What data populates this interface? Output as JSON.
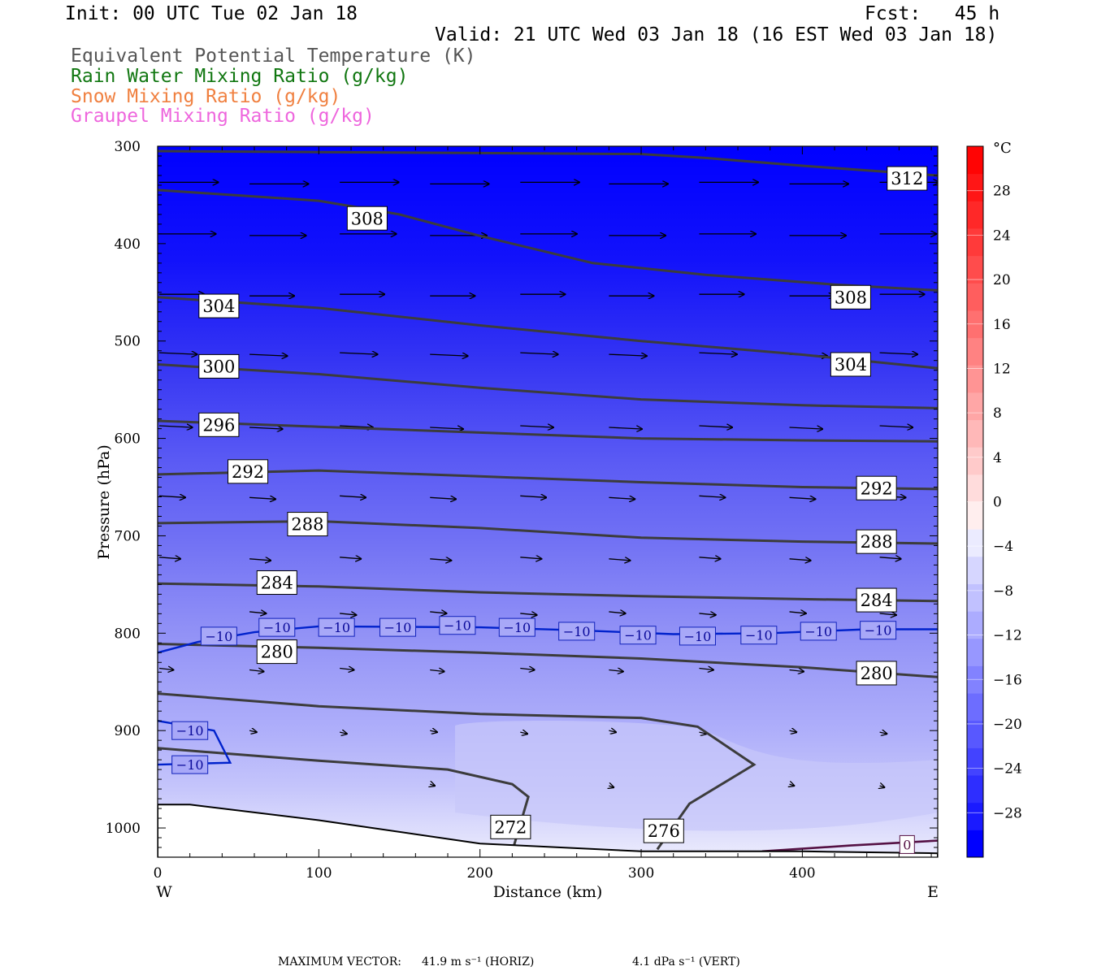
{
  "header": {
    "init": "Init: 00 UTC Tue 02 Jan 18",
    "fcst": "Fcst:   45 h",
    "valid": "Valid: 21 UTC Wed 03 Jan 18 (16 EST Wed 03 Jan 18)",
    "fields": [
      {
        "label": "Equivalent Potential Temperature (K)",
        "color": "#555555"
      },
      {
        "label": "Rain Water Mixing Ratio (g/kg)",
        "color": "#117711"
      },
      {
        "label": "Snow Mixing Ratio (g/kg)",
        "color": "#f08040"
      },
      {
        "label": "Graupel Mixing Ratio (g/kg)",
        "color": "#ee66dd"
      }
    ]
  },
  "footer": {
    "max_vector_label": "MAXIMUM VECTOR:",
    "horiz": "41.9 m s⁻¹ (HORIZ)",
    "vert": "4.1 dPa s⁻¹ (VERT)"
  },
  "chart_data": {
    "type": "cross-section",
    "xlabel": "Distance (km)",
    "ylabel": "Pressure (hPa)",
    "xlim": [
      0,
      484
    ],
    "ylim": [
      1030,
      300
    ],
    "x_ticks": [
      0,
      100,
      200,
      300,
      400
    ],
    "y_ticks": [
      300,
      400,
      500,
      600,
      700,
      800,
      900,
      1000
    ],
    "left_end_label": "W",
    "right_end_label": "E",
    "colorbar": {
      "unit": "°C",
      "tick_labels": [
        "28",
        "24",
        "20",
        "16",
        "12",
        "8",
        "4",
        "0",
        "−4",
        "−8",
        "−12",
        "−16",
        "−20",
        "−24",
        "−28"
      ],
      "tick_values": [
        28,
        24,
        20,
        16,
        12,
        8,
        4,
        0,
        -4,
        -8,
        -12,
        -16,
        -20,
        -24,
        -28
      ],
      "range": [
        -32,
        32
      ],
      "colors": [
        "#0000ff",
        "#1a1aff",
        "#2e2eff",
        "#4343ff",
        "#5858ff",
        "#6d6dff",
        "#8282ff",
        "#9797ff",
        "#acacff",
        "#c1c1ff",
        "#d6d6ff",
        "#ebebff",
        "#ffeeee",
        "#ffdcdc",
        "#ffcaca",
        "#ffb8b8",
        "#ffa6a6",
        "#ff9494",
        "#ff8282",
        "#ff7070",
        "#ff5e5e",
        "#ff4c4c",
        "#ff3a3a",
        "#ff2828",
        "#ff1616",
        "#ff0404"
      ]
    },
    "theta_e_contours": [
      {
        "label": "312",
        "points": [
          [
            0,
            305
          ],
          [
            100,
            306
          ],
          [
            200,
            307
          ],
          [
            300,
            308
          ],
          [
            340,
            312
          ],
          [
            400,
            320
          ],
          [
            484,
            330
          ]
        ],
        "label_at": [
          465,
          333
        ]
      },
      {
        "label": "308",
        "points": [
          [
            0,
            345
          ],
          [
            100,
            356
          ],
          [
            150,
            370
          ],
          [
            200,
            392
          ],
          [
            270,
            420
          ],
          [
            340,
            432
          ],
          [
            420,
            442
          ],
          [
            484,
            448
          ]
        ],
        "label_at": [
          130,
          374
        ],
        "label_at2": [
          430,
          455
        ]
      },
      {
        "label": "304",
        "points": [
          [
            0,
            455
          ],
          [
            100,
            466
          ],
          [
            200,
            484
          ],
          [
            300,
            500
          ],
          [
            400,
            514
          ],
          [
            484,
            528
          ]
        ],
        "label_at": [
          38,
          464
        ],
        "label_at2": [
          430,
          524
        ]
      },
      {
        "label": "300",
        "points": [
          [
            0,
            524
          ],
          [
            100,
            534
          ],
          [
            200,
            548
          ],
          [
            300,
            560
          ],
          [
            400,
            566
          ],
          [
            484,
            569
          ]
        ],
        "label_at": [
          38,
          526
        ]
      },
      {
        "label": "296",
        "points": [
          [
            0,
            582
          ],
          [
            100,
            588
          ],
          [
            200,
            594
          ],
          [
            300,
            600
          ],
          [
            400,
            602
          ],
          [
            484,
            603
          ]
        ],
        "label_at": [
          38,
          586
        ]
      },
      {
        "label": "292",
        "points": [
          [
            0,
            637
          ],
          [
            100,
            633
          ],
          [
            200,
            639
          ],
          [
            300,
            645
          ],
          [
            400,
            650
          ],
          [
            484,
            652
          ]
        ],
        "label_at": [
          56,
          634
        ],
        "label_at2": [
          446,
          651
        ]
      },
      {
        "label": "288",
        "points": [
          [
            0,
            687
          ],
          [
            100,
            685
          ],
          [
            200,
            692
          ],
          [
            300,
            702
          ],
          [
            400,
            706
          ],
          [
            484,
            708
          ]
        ],
        "label_at": [
          93,
          688
        ],
        "label_at2": [
          446,
          706
        ]
      },
      {
        "label": "284",
        "points": [
          [
            0,
            749
          ],
          [
            100,
            752
          ],
          [
            200,
            758
          ],
          [
            300,
            762
          ],
          [
            400,
            765
          ],
          [
            484,
            767
          ]
        ],
        "label_at": [
          74,
          748
        ],
        "label_at2": [
          446,
          766
        ]
      },
      {
        "label": "280",
        "points": [
          [
            0,
            811
          ],
          [
            100,
            815
          ],
          [
            200,
            820
          ],
          [
            300,
            826
          ],
          [
            400,
            835
          ],
          [
            484,
            845
          ]
        ],
        "label_at": [
          74,
          819
        ],
        "label_at2": [
          446,
          841
        ]
      },
      {
        "label": "276",
        "points": [
          [
            0,
            862
          ],
          [
            100,
            875
          ],
          [
            200,
            883
          ],
          [
            300,
            887
          ],
          [
            335,
            896
          ],
          [
            370,
            935
          ],
          [
            330,
            975
          ],
          [
            310,
            1022
          ]
        ],
        "label_at": [
          314,
          1003
        ]
      },
      {
        "label": "272",
        "points": [
          [
            0,
            918
          ],
          [
            100,
            931
          ],
          [
            180,
            940
          ],
          [
            220,
            955
          ],
          [
            230,
            968
          ],
          [
            220,
            1024
          ]
        ],
        "label_at": [
          219,
          999
        ]
      }
    ],
    "temperature_contours": [
      {
        "label": "−10",
        "color": "#0022cc",
        "points": [
          [
            0,
            820
          ],
          [
            25,
            809
          ],
          [
            60,
            799
          ],
          [
            100,
            793
          ],
          [
            200,
            794
          ],
          [
            260,
            797
          ],
          [
            320,
            801
          ],
          [
            380,
            800
          ],
          [
            440,
            796
          ],
          [
            484,
            796
          ]
        ],
        "labels": [
          [
            38,
            803
          ],
          [
            74,
            794
          ],
          [
            111,
            794
          ],
          [
            149,
            794
          ],
          [
            186,
            792
          ],
          [
            223,
            794
          ],
          [
            260,
            798
          ],
          [
            298,
            802
          ],
          [
            335,
            803
          ],
          [
            373,
            802
          ],
          [
            410,
            798
          ],
          [
            447,
            797
          ]
        ]
      },
      {
        "label": "−10",
        "color": "#0022cc",
        "points": [
          [
            0,
            890
          ],
          [
            35,
            900
          ],
          [
            45,
            933
          ],
          [
            0,
            935
          ]
        ],
        "labels": [
          [
            20,
            900
          ],
          [
            20,
            935
          ]
        ]
      }
    ],
    "zero_contour": {
      "label": "0",
      "color": "#551144",
      "points": [
        [
          375,
          1024
        ],
        [
          430,
          1018
        ],
        [
          484,
          1013
        ]
      ],
      "label_at": [
        465,
        1017
      ]
    },
    "terrain": [
      [
        0,
        976
      ],
      [
        20,
        976
      ],
      [
        100,
        992
      ],
      [
        200,
        1016
      ],
      [
        300,
        1024
      ],
      [
        400,
        1024
      ],
      [
        484,
        1026
      ]
    ],
    "wind_rows": [
      {
        "p": 337,
        "xs": [
          0,
          56,
          112,
          168,
          224,
          279,
          335,
          391,
          447
        ],
        "len": 50
      },
      {
        "p": 390,
        "xs": [
          0,
          56,
          112,
          168,
          224,
          279,
          335,
          391,
          447
        ],
        "len": 48
      },
      {
        "p": 452,
        "xs": [
          0,
          56,
          112,
          168,
          224,
          279,
          335,
          391,
          447
        ],
        "len": 38
      },
      {
        "p": 512,
        "xs": [
          0,
          56,
          112,
          168,
          224,
          279,
          335,
          391,
          447
        ],
        "len": 32
      },
      {
        "p": 587,
        "xs": [
          0,
          56,
          112,
          168,
          224,
          279,
          335,
          391,
          447
        ],
        "len": 28
      },
      {
        "p": 659,
        "xs": [
          0,
          56,
          112,
          168,
          224,
          279,
          335,
          391,
          447
        ],
        "len": 22
      },
      {
        "p": 722,
        "xs": [
          0,
          56,
          112,
          168,
          224,
          279,
          335,
          391,
          447
        ],
        "len": 18
      },
      {
        "p": 778,
        "xs": [
          56,
          112,
          168,
          224,
          279,
          335,
          391,
          447
        ],
        "len": 14
      },
      {
        "p": 836,
        "xs": [
          0,
          56,
          112,
          168,
          224,
          279,
          335,
          391,
          447
        ],
        "len": 12
      },
      {
        "p": 900,
        "xs": [
          56,
          112,
          168,
          224,
          279,
          335,
          391,
          447
        ],
        "len": 6
      },
      {
        "p": 955,
        "xs": [
          168,
          279,
          391,
          447
        ],
        "len": 4
      }
    ]
  }
}
